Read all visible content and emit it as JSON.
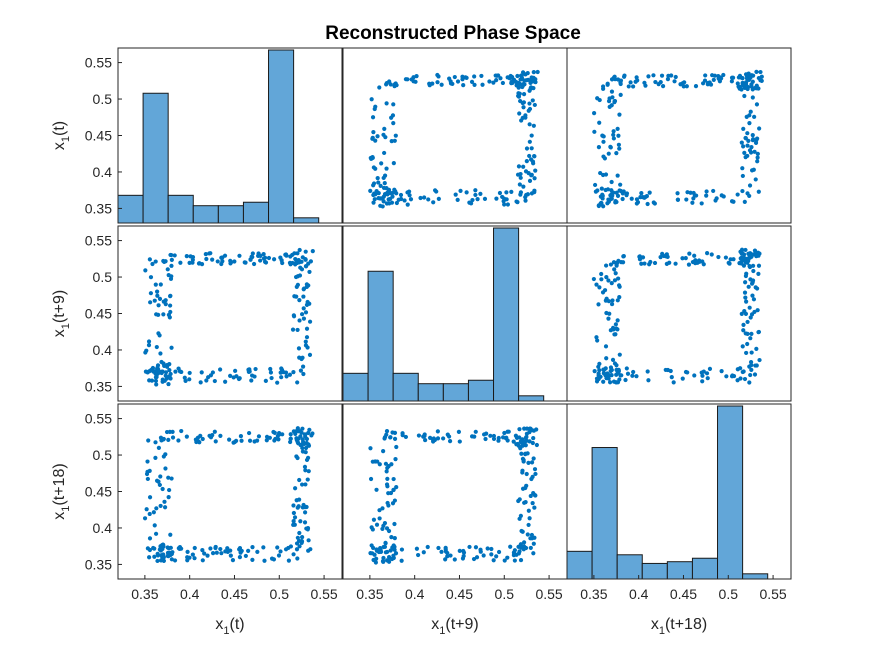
{
  "chart_data": {
    "type": "scatter-matrix",
    "title": "Reconstructed Phase Space",
    "variables": [
      {
        "base": "x",
        "sub": "1",
        "suffix": "(t)"
      },
      {
        "base": "x",
        "sub": "1",
        "suffix": "(t+9)"
      },
      {
        "base": "x",
        "sub": "1",
        "suffix": "(t+18)"
      }
    ],
    "xlim": [
      0.32,
      0.57
    ],
    "ylim": [
      0.33,
      0.57
    ],
    "xticks": [
      "0.35",
      "0.4",
      "0.45",
      "0.5",
      "0.55"
    ],
    "yticks": [
      "0.35",
      "0.4",
      "0.45",
      "0.5",
      "0.55"
    ],
    "colors": {
      "bar": "#62a6d8",
      "bar_edge": "#1a1a1a",
      "point": "#0072bd",
      "axis": "#262626"
    },
    "histogram": {
      "bin_edges": [
        0.32,
        0.348,
        0.376,
        0.404,
        0.432,
        0.46,
        0.488,
        0.516,
        0.544,
        0.572
      ],
      "relative_heights_by_panel": [
        [
          0.16,
          0.75,
          0.16,
          0.1,
          0.1,
          0.12,
          1.0,
          0.0
        ],
        [
          0.16,
          0.75,
          0.16,
          0.1,
          0.1,
          0.12,
          1.0,
          0.0
        ],
        [
          0.16,
          0.76,
          0.14,
          0.09,
          0.1,
          0.12,
          1.0,
          0.0
        ]
      ],
      "edge_bin": {
        "range": [
          0.544,
          0.572
        ],
        "relative_height": 0.03
      }
    },
    "scatter": {
      "description_points": "Lag embedding of a periodic square-wave-like signal; points trace a rectangular loop between ~0.35 and ~0.53 in both coordinates.",
      "loop_low": 0.365,
      "loop_high": 0.525
    }
  }
}
